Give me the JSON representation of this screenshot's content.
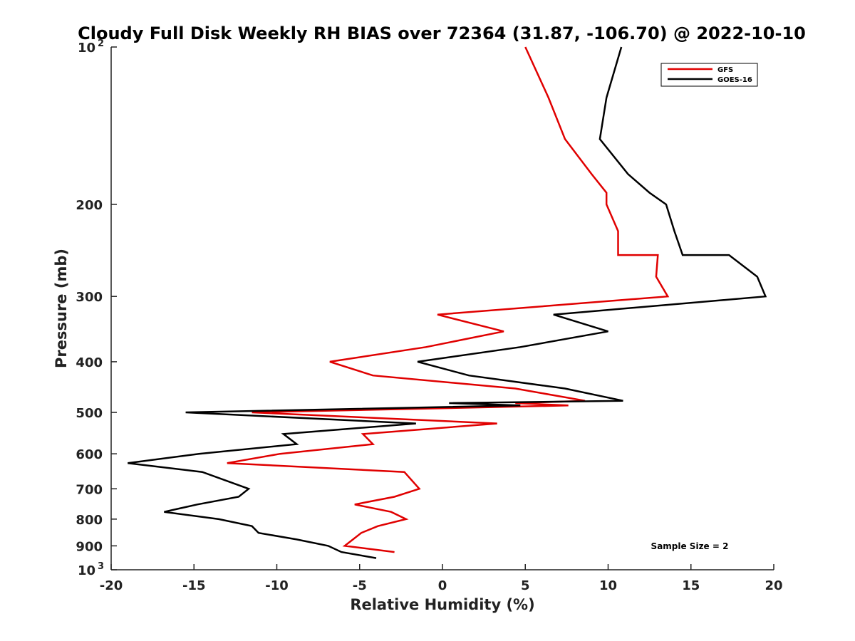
{
  "chart_data": {
    "type": "line",
    "orientation": "vertical-profile",
    "title": "Cloudy Full Disk Weekly RH BIAS over 72364 (31.87, -106.70) @ 2022-10-10",
    "xlabel": "Relative Humidity (%)",
    "ylabel": "Pressure (mb)",
    "xlim": [
      -20,
      20
    ],
    "ylim": [
      100,
      1000
    ],
    "y_scale": "log",
    "y_reversed": true,
    "x_ticks": [
      "-20",
      "-15",
      "-10",
      "-5",
      "0",
      "5",
      "10",
      "15",
      "20"
    ],
    "y_ticks": [
      {
        "value": 100,
        "base": "10",
        "exp": "2"
      },
      {
        "value": 200,
        "label": "200"
      },
      {
        "value": 300,
        "label": "300"
      },
      {
        "value": 400,
        "label": "400"
      },
      {
        "value": 500,
        "label": "500"
      },
      {
        "value": 600,
        "label": "600"
      },
      {
        "value": 700,
        "label": "700"
      },
      {
        "value": 800,
        "label": "800"
      },
      {
        "value": 900,
        "label": "900"
      },
      {
        "value": 1000,
        "base": "10",
        "exp": "3"
      }
    ],
    "grid": false,
    "legend": "top-right",
    "annotation": "Sample Size = 2",
    "series": [
      {
        "name": "GFS",
        "color": "#e00000",
        "points": [
          [
            5.0,
            100
          ],
          [
            6.4,
            125
          ],
          [
            7.4,
            150
          ],
          [
            9.0,
            175
          ],
          [
            9.9,
            190
          ],
          [
            9.9,
            200
          ],
          [
            10.6,
            225
          ],
          [
            10.6,
            250
          ],
          [
            13.0,
            250
          ],
          [
            12.9,
            275
          ],
          [
            13.6,
            300
          ],
          [
            -0.3,
            325
          ],
          [
            3.7,
            350
          ],
          [
            -1.0,
            375
          ],
          [
            -6.8,
            400
          ],
          [
            -4.2,
            425
          ],
          [
            4.4,
            450
          ],
          [
            8.6,
            475
          ],
          [
            4.4,
            480
          ],
          [
            7.6,
            485
          ],
          [
            -11.5,
            500
          ],
          [
            3.3,
            525
          ],
          [
            -4.8,
            550
          ],
          [
            -4.2,
            575
          ],
          [
            -9.8,
            600
          ],
          [
            -13.0,
            625
          ],
          [
            -2.3,
            650
          ],
          [
            -1.4,
            700
          ],
          [
            -2.9,
            725
          ],
          [
            -5.3,
            750
          ],
          [
            -3.1,
            775
          ],
          [
            -2.2,
            800
          ],
          [
            -3.9,
            825
          ],
          [
            -4.9,
            850
          ],
          [
            -5.4,
            875
          ],
          [
            -5.9,
            900
          ],
          [
            -2.9,
            925
          ]
        ]
      },
      {
        "name": "GOES-16",
        "color": "#000000",
        "points": [
          [
            10.8,
            100
          ],
          [
            9.9,
            125
          ],
          [
            9.5,
            150
          ],
          [
            11.2,
            175
          ],
          [
            12.5,
            190
          ],
          [
            13.5,
            200
          ],
          [
            14.0,
            225
          ],
          [
            14.5,
            250
          ],
          [
            17.3,
            250
          ],
          [
            19.0,
            275
          ],
          [
            19.5,
            300
          ],
          [
            6.7,
            325
          ],
          [
            10.0,
            350
          ],
          [
            4.7,
            375
          ],
          [
            -1.5,
            400
          ],
          [
            1.6,
            425
          ],
          [
            7.4,
            450
          ],
          [
            10.9,
            475
          ],
          [
            0.4,
            480
          ],
          [
            4.7,
            485
          ],
          [
            -15.5,
            500
          ],
          [
            -1.6,
            525
          ],
          [
            -9.6,
            550
          ],
          [
            -8.8,
            575
          ],
          [
            -14.7,
            600
          ],
          [
            -19.0,
            625
          ],
          [
            -14.5,
            650
          ],
          [
            -11.7,
            700
          ],
          [
            -12.3,
            725
          ],
          [
            -14.8,
            750
          ],
          [
            -16.8,
            775
          ],
          [
            -13.5,
            800
          ],
          [
            -11.5,
            825
          ],
          [
            -11.1,
            850
          ],
          [
            -8.8,
            875
          ],
          [
            -6.9,
            900
          ],
          [
            -6.1,
            925
          ],
          [
            -4.0,
            950
          ]
        ]
      }
    ]
  }
}
